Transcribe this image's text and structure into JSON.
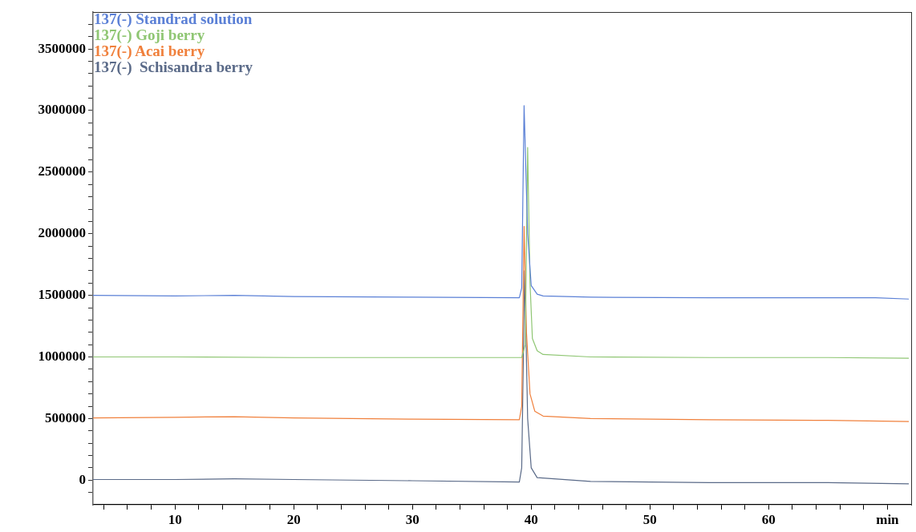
{
  "chart_data": {
    "type": "line",
    "xlim": [
      3.1,
      72
    ],
    "ylim": [
      -200000,
      3800000
    ],
    "xticks": [
      {
        "value": 4,
        "label": null
      },
      {
        "value": 6,
        "label": null
      },
      {
        "value": 8,
        "label": null
      },
      10,
      {
        "value": 12,
        "label": null
      },
      {
        "value": 14,
        "label": null
      },
      {
        "value": 16,
        "label": null
      },
      {
        "value": 18,
        "label": null
      },
      20,
      {
        "value": 22,
        "label": null
      },
      {
        "value": 24,
        "label": null
      },
      {
        "value": 26,
        "label": null
      },
      {
        "value": 28,
        "label": null
      },
      30,
      {
        "value": 32,
        "label": null
      },
      {
        "value": 34,
        "label": null
      },
      {
        "value": 36,
        "label": null
      },
      {
        "value": 38,
        "label": null
      },
      40,
      {
        "value": 42,
        "label": null
      },
      {
        "value": 44,
        "label": null
      },
      {
        "value": 46,
        "label": null
      },
      {
        "value": 48,
        "label": null
      },
      50,
      {
        "value": 52,
        "label": null
      },
      {
        "value": 54,
        "label": null
      },
      {
        "value": 56,
        "label": null
      },
      {
        "value": 58,
        "label": null
      },
      60,
      {
        "value": 62,
        "label": null
      },
      {
        "value": 64,
        "label": null
      },
      {
        "value": 66,
        "label": null
      },
      {
        "value": 68,
        "label": null
      },
      {
        "value": 70,
        "label": "min"
      }
    ],
    "yticks": [
      {
        "value": -100000,
        "label": null
      },
      0,
      {
        "value": 100000,
        "label": null
      },
      {
        "value": 200000,
        "label": null
      },
      {
        "value": 300000,
        "label": null
      },
      {
        "value": 400000,
        "label": null
      },
      500000,
      {
        "value": 600000,
        "label": null
      },
      {
        "value": 700000,
        "label": null
      },
      {
        "value": 800000,
        "label": null
      },
      {
        "value": 900000,
        "label": null
      },
      1000000,
      {
        "value": 1100000,
        "label": null
      },
      {
        "value": 1200000,
        "label": null
      },
      {
        "value": 1300000,
        "label": null
      },
      {
        "value": 1400000,
        "label": null
      },
      1500000,
      {
        "value": 1600000,
        "label": null
      },
      {
        "value": 1700000,
        "label": null
      },
      {
        "value": 1800000,
        "label": null
      },
      {
        "value": 1900000,
        "label": null
      },
      2000000,
      {
        "value": 2100000,
        "label": null
      },
      {
        "value": 2200000,
        "label": null
      },
      {
        "value": 2300000,
        "label": null
      },
      {
        "value": 2400000,
        "label": null
      },
      2500000,
      {
        "value": 2600000,
        "label": null
      },
      {
        "value": 2700000,
        "label": null
      },
      {
        "value": 2800000,
        "label": null
      },
      {
        "value": 2900000,
        "label": null
      },
      3000000,
      {
        "value": 3100000,
        "label": null
      },
      {
        "value": 3200000,
        "label": null
      },
      {
        "value": 3300000,
        "label": null
      },
      {
        "value": 3400000,
        "label": null
      },
      3500000,
      {
        "value": 3600000,
        "label": null
      },
      {
        "value": 3700000,
        "label": null
      }
    ],
    "grid": false,
    "legend": "top left",
    "marker": "none",
    "line_style": "solid",
    "series": [
      {
        "name": "137(-) Standrad solution",
        "color": "#5b80d6",
        "x": [
          3.1,
          10,
          15,
          20,
          30,
          39.0,
          39.2,
          39.4,
          39.7,
          40.0,
          40.5,
          41,
          45,
          55,
          65,
          69,
          71.8
        ],
        "values": [
          1500000,
          1495000,
          1500000,
          1490000,
          1485000,
          1480000,
          1560000,
          3040000,
          2000000,
          1580000,
          1510000,
          1495000,
          1485000,
          1480000,
          1480000,
          1480000,
          1470000
        ]
      },
      {
        "name": "137(-) Goji berry",
        "color": "#8fc673",
        "x": [
          3.1,
          10,
          20,
          30,
          39.2,
          39.5,
          39.7,
          39.9,
          40.1,
          40.5,
          41,
          45,
          55,
          65,
          71.8
        ],
        "values": [
          1000000,
          1000000,
          995000,
          995000,
          995000,
          1100000,
          2700000,
          1600000,
          1150000,
          1050000,
          1020000,
          1000000,
          995000,
          995000,
          990000
        ]
      },
      {
        "name": "137(-) Acai berry",
        "color": "#f0803c",
        "x": [
          3.1,
          10,
          15,
          20,
          30,
          39.0,
          39.2,
          39.4,
          39.6,
          39.9,
          40.3,
          41,
          45,
          55,
          65,
          71.8
        ],
        "values": [
          505000,
          510000,
          515000,
          505000,
          495000,
          490000,
          600000,
          2060000,
          1200000,
          700000,
          560000,
          520000,
          500000,
          490000,
          485000,
          475000
        ]
      },
      {
        "name": "137(-)  Schisandra berry",
        "color": "#5a6a88",
        "x": [
          3.1,
          10,
          15,
          20,
          30,
          39.0,
          39.2,
          39.45,
          39.7,
          40.0,
          40.5,
          45,
          55,
          65,
          71.8
        ],
        "values": [
          5000,
          5000,
          10000,
          5000,
          -5000,
          -15000,
          100000,
          1700000,
          500000,
          100000,
          20000,
          -10000,
          -20000,
          -20000,
          -30000
        ]
      }
    ]
  }
}
